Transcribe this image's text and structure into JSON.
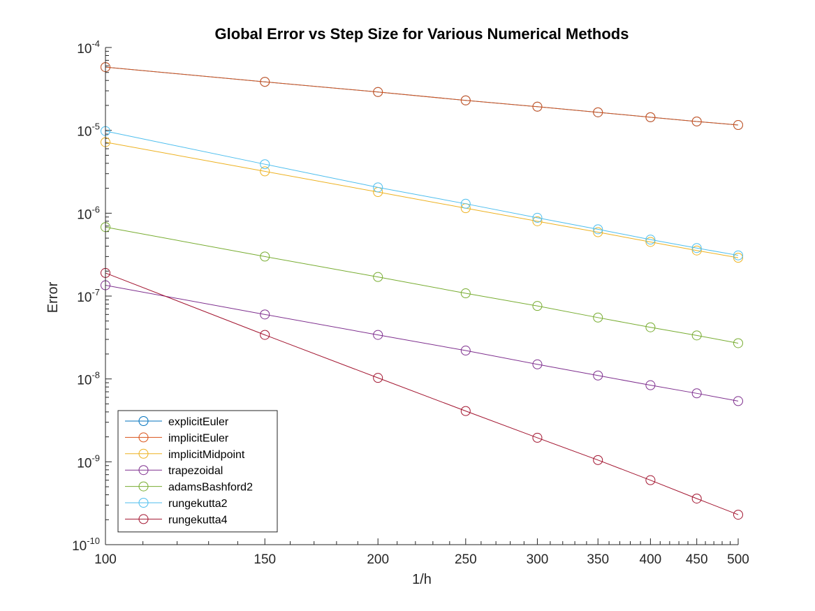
{
  "chart_data": {
    "type": "line",
    "title": "Global Error vs Step Size for Various Numerical Methods",
    "xlabel": "1/h",
    "ylabel": "Error",
    "xscale": "log",
    "yscale": "log",
    "xlim": [
      100,
      500
    ],
    "ylim": [
      1e-10,
      0.0001
    ],
    "xticks": [
      100,
      150,
      200,
      250,
      300,
      350,
      400,
      450,
      500
    ],
    "xtick_labels": [
      "100",
      "150",
      "200",
      "250",
      "300",
      "350",
      "400",
      "450",
      "500"
    ],
    "yticks": [
      1e-10,
      1e-09,
      1e-08,
      1e-07,
      1e-06,
      1e-05,
      0.0001
    ],
    "ytick_labels": [
      {
        "base": "10",
        "exp": "-10"
      },
      {
        "base": "10",
        "exp": "-9"
      },
      {
        "base": "10",
        "exp": "-8"
      },
      {
        "base": "10",
        "exp": "-7"
      },
      {
        "base": "10",
        "exp": "-6"
      },
      {
        "base": "10",
        "exp": "-5"
      },
      {
        "base": "10",
        "exp": "-4"
      }
    ],
    "grid": false,
    "legend_position": "bottom-left",
    "marker": "open-circle",
    "x": [
      100,
      150,
      200,
      250,
      300,
      350,
      400,
      450,
      500
    ],
    "series": [
      {
        "name": "explicitEuler",
        "color": "#0072BD",
        "values": [
          5.8e-05,
          3.85e-05,
          2.9e-05,
          2.3e-05,
          1.93e-05,
          1.65e-05,
          1.44e-05,
          1.28e-05,
          1.16e-05
        ]
      },
      {
        "name": "implicitEuler",
        "color": "#D95319",
        "values": [
          5.8e-05,
          3.85e-05,
          2.9e-05,
          2.3e-05,
          1.93e-05,
          1.65e-05,
          1.44e-05,
          1.28e-05,
          1.16e-05
        ]
      },
      {
        "name": "implicitMidpoint",
        "color": "#EDB120",
        "values": [
          7.2e-06,
          3.2e-06,
          1.8e-06,
          1.15e-06,
          8e-07,
          5.9e-07,
          4.5e-07,
          3.55e-07,
          2.9e-07
        ]
      },
      {
        "name": "trapezoidal",
        "color": "#7E2F8E",
        "values": [
          1.35e-07,
          6e-08,
          3.4e-08,
          2.2e-08,
          1.5e-08,
          1.1e-08,
          8.4e-09,
          6.7e-09,
          5.4e-09
        ]
      },
      {
        "name": "adamsBashford2",
        "color": "#77AC30",
        "values": [
          6.8e-07,
          3e-07,
          1.7e-07,
          1.08e-07,
          7.6e-08,
          5.5e-08,
          4.2e-08,
          3.35e-08,
          2.7e-08
        ]
      },
      {
        "name": "rungekutta2",
        "color": "#4DBEEE",
        "values": [
          9.8e-06,
          3.9e-06,
          2.05e-06,
          1.3e-06,
          8.8e-07,
          6.4e-07,
          4.8e-07,
          3.8e-07,
          3.1e-07
        ]
      },
      {
        "name": "rungekutta4",
        "color": "#A2142F",
        "values": [
          1.9e-07,
          3.4e-08,
          1.03e-08,
          4.1e-09,
          1.95e-09,
          1.05e-09,
          6e-10,
          3.6e-10,
          2.3e-10
        ]
      }
    ]
  }
}
